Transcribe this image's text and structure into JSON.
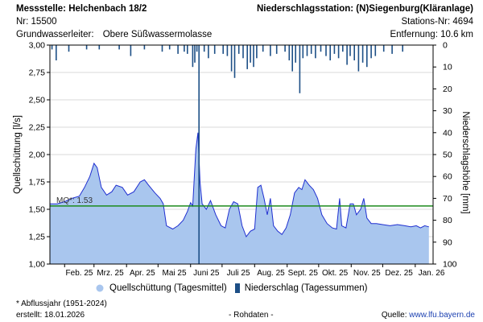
{
  "header": {
    "station": "Messstelle: Helchenbach 18/2",
    "number": "Nr: 15500",
    "aquifer_label": "Grundwasserleiter:",
    "aquifer_value": "Obere Süßwassermolasse",
    "rain_station": "Niederschlagsstation: (N)Siegenburg(Kläranlage)",
    "rain_station_nr": "Stations-Nr: 4694",
    "distance": "Entfernung: 10.6 km"
  },
  "legend": {
    "flow": "Quellschüttung (Tagesmittel)",
    "rain": "Niederschlag (Tagessummen)"
  },
  "footer": {
    "note": "* Abflussjahr (1951-2024)",
    "created": "erstellt:  18.01.2026",
    "raw": "- Rohdaten -",
    "source_label": "Quelle:",
    "source_url": "www.lfu.bayern.de"
  },
  "colors": {
    "flow_fill": "#a9c6ee",
    "flow_line": "#1f2fd0",
    "mq_line": "#1c8a1c",
    "rain_bar": "#1d4f86"
  },
  "chart_data": {
    "type": "area",
    "ylabel": "Quellschüttung [l/s]",
    "y2label": "Niederschlagshöhe [mm]",
    "ylim": [
      1.0,
      3.0
    ],
    "y2lim": [
      0,
      100
    ],
    "y2_inverted": true,
    "yticks": [
      "1,00",
      "1,25",
      "1,50",
      "1,75",
      "2,00",
      "2,25",
      "2,50",
      "2,75",
      "3,00"
    ],
    "y2ticks": [
      "0",
      "10",
      "20",
      "30",
      "40",
      "50",
      "60",
      "70",
      "80",
      "90",
      "100"
    ],
    "xlabels": [
      "Feb. 25",
      "Mrz. 25",
      "Apr. 25",
      "Mai 25",
      "Juni 25",
      "Juli 25",
      "Aug. 25",
      "Sept. 25",
      "Okt. 25",
      "Nov. 25",
      "Dez. 25",
      "Jan. 26"
    ],
    "x_start": "2025-01-18",
    "x_end": "2026-01-18",
    "mq": {
      "label": "MQ*: 1.53",
      "value": 1.53
    },
    "series": [
      {
        "name": "Quellschüttung (Tagesmittel)",
        "points": [
          [
            "2025-01-18",
            1.55
          ],
          [
            "2025-01-25",
            1.55
          ],
          [
            "2025-02-01",
            1.57
          ],
          [
            "2025-02-08",
            1.6
          ],
          [
            "2025-02-15",
            1.62
          ],
          [
            "2025-02-20",
            1.7
          ],
          [
            "2025-02-25",
            1.8
          ],
          [
            "2025-03-01",
            1.92
          ],
          [
            "2025-03-04",
            1.88
          ],
          [
            "2025-03-08",
            1.7
          ],
          [
            "2025-03-13",
            1.63
          ],
          [
            "2025-03-18",
            1.66
          ],
          [
            "2025-03-22",
            1.72
          ],
          [
            "2025-03-28",
            1.7
          ],
          [
            "2025-04-02",
            1.63
          ],
          [
            "2025-04-08",
            1.66
          ],
          [
            "2025-04-14",
            1.75
          ],
          [
            "2025-04-18",
            1.77
          ],
          [
            "2025-04-22",
            1.72
          ],
          [
            "2025-04-28",
            1.65
          ],
          [
            "2025-05-03",
            1.6
          ],
          [
            "2025-05-06",
            1.55
          ],
          [
            "2025-05-09",
            1.35
          ],
          [
            "2025-05-15",
            1.32
          ],
          [
            "2025-05-20",
            1.35
          ],
          [
            "2025-05-25",
            1.4
          ],
          [
            "2025-05-29",
            1.48
          ],
          [
            "2025-06-01",
            1.56
          ],
          [
            "2025-06-03",
            1.53
          ],
          [
            "2025-06-06",
            2.05
          ],
          [
            "2025-06-08",
            2.2
          ],
          [
            "2025-06-10",
            1.75
          ],
          [
            "2025-06-12",
            1.55
          ],
          [
            "2025-06-16",
            1.5
          ],
          [
            "2025-06-20",
            1.58
          ],
          [
            "2025-06-25",
            1.45
          ],
          [
            "2025-06-30",
            1.35
          ],
          [
            "2025-07-04",
            1.33
          ],
          [
            "2025-07-08",
            1.5
          ],
          [
            "2025-07-12",
            1.57
          ],
          [
            "2025-07-16",
            1.55
          ],
          [
            "2025-07-20",
            1.35
          ],
          [
            "2025-07-24",
            1.25
          ],
          [
            "2025-07-28",
            1.3
          ],
          [
            "2025-08-01",
            1.32
          ],
          [
            "2025-08-04",
            1.7
          ],
          [
            "2025-08-07",
            1.72
          ],
          [
            "2025-08-10",
            1.6
          ],
          [
            "2025-08-13",
            1.45
          ],
          [
            "2025-08-16",
            1.6
          ],
          [
            "2025-08-19",
            1.35
          ],
          [
            "2025-08-23",
            1.3
          ],
          [
            "2025-08-27",
            1.27
          ],
          [
            "2025-08-31",
            1.33
          ],
          [
            "2025-09-04",
            1.45
          ],
          [
            "2025-09-08",
            1.65
          ],
          [
            "2025-09-12",
            1.7
          ],
          [
            "2025-09-15",
            1.68
          ],
          [
            "2025-09-18",
            1.77
          ],
          [
            "2025-09-22",
            1.72
          ],
          [
            "2025-09-26",
            1.68
          ],
          [
            "2025-09-30",
            1.6
          ],
          [
            "2025-10-04",
            1.45
          ],
          [
            "2025-10-09",
            1.37
          ],
          [
            "2025-10-14",
            1.33
          ],
          [
            "2025-10-18",
            1.32
          ],
          [
            "2025-10-21",
            1.6
          ],
          [
            "2025-10-23",
            1.35
          ],
          [
            "2025-10-27",
            1.33
          ],
          [
            "2025-10-31",
            1.55
          ],
          [
            "2025-11-03",
            1.55
          ],
          [
            "2025-11-06",
            1.45
          ],
          [
            "2025-11-10",
            1.5
          ],
          [
            "2025-11-13",
            1.6
          ],
          [
            "2025-11-16",
            1.42
          ],
          [
            "2025-11-20",
            1.37
          ],
          [
            "2025-11-25",
            1.37
          ],
          [
            "2025-12-01",
            1.36
          ],
          [
            "2025-12-08",
            1.35
          ],
          [
            "2025-12-15",
            1.36
          ],
          [
            "2025-12-22",
            1.35
          ],
          [
            "2025-12-28",
            1.34
          ],
          [
            "2026-01-02",
            1.35
          ],
          [
            "2026-01-06",
            1.33
          ],
          [
            "2026-01-10",
            1.35
          ],
          [
            "2026-01-14",
            1.34
          ]
        ]
      },
      {
        "name": "Niederschlag (Tagessummen)",
        "points": [
          [
            "2025-01-20",
            2
          ],
          [
            "2025-01-24",
            7
          ],
          [
            "2025-02-05",
            3
          ],
          [
            "2025-02-22",
            2
          ],
          [
            "2025-03-06",
            2
          ],
          [
            "2025-03-25",
            2
          ],
          [
            "2025-04-05",
            5
          ],
          [
            "2025-04-18",
            2
          ],
          [
            "2025-05-05",
            3
          ],
          [
            "2025-05-12",
            2
          ],
          [
            "2025-05-20",
            4
          ],
          [
            "2025-05-26",
            3
          ],
          [
            "2025-05-29",
            4
          ],
          [
            "2025-06-03",
            10
          ],
          [
            "2025-06-05",
            8
          ],
          [
            "2025-06-07",
            3
          ],
          [
            "2025-06-09",
            100
          ],
          [
            "2025-06-14",
            3
          ],
          [
            "2025-06-18",
            6
          ],
          [
            "2025-06-24",
            4
          ],
          [
            "2025-07-02",
            4
          ],
          [
            "2025-07-06",
            5
          ],
          [
            "2025-07-10",
            12
          ],
          [
            "2025-07-13",
            15
          ],
          [
            "2025-07-17",
            4
          ],
          [
            "2025-07-21",
            6
          ],
          [
            "2025-07-25",
            11
          ],
          [
            "2025-07-28",
            8
          ],
          [
            "2025-07-31",
            10
          ],
          [
            "2025-08-03",
            6
          ],
          [
            "2025-08-09",
            3
          ],
          [
            "2025-08-16",
            5
          ],
          [
            "2025-08-22",
            4
          ],
          [
            "2025-08-30",
            3
          ],
          [
            "2025-09-03",
            7
          ],
          [
            "2025-09-06",
            12
          ],
          [
            "2025-09-09",
            8
          ],
          [
            "2025-09-13",
            22
          ],
          [
            "2025-09-16",
            6
          ],
          [
            "2025-09-20",
            5
          ],
          [
            "2025-09-24",
            4
          ],
          [
            "2025-09-28",
            6
          ],
          [
            "2025-10-03",
            3
          ],
          [
            "2025-10-08",
            5
          ],
          [
            "2025-10-12",
            7
          ],
          [
            "2025-10-16",
            4
          ],
          [
            "2025-10-20",
            6
          ],
          [
            "2025-10-24",
            3
          ],
          [
            "2025-10-28",
            9
          ],
          [
            "2025-10-31",
            5
          ],
          [
            "2025-11-04",
            7
          ],
          [
            "2025-11-08",
            12
          ],
          [
            "2025-11-12",
            8
          ],
          [
            "2025-11-16",
            10
          ],
          [
            "2025-11-20",
            6
          ],
          [
            "2025-11-24",
            5
          ],
          [
            "2025-12-02",
            3
          ],
          [
            "2025-12-10",
            4
          ],
          [
            "2025-12-20",
            3
          ]
        ]
      }
    ]
  }
}
